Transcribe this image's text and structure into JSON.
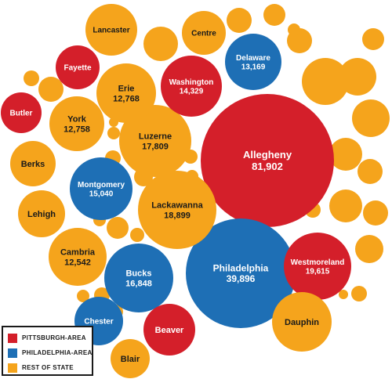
{
  "colors": {
    "pittsburgh": "#d41f2a",
    "philadelphia": "#1e6fb5",
    "rest": "#f5a41c"
  },
  "legend": {
    "pittsburgh": "PITTSBURGH-AREA",
    "philadelphia": "PHILADELPHIA-AREA",
    "rest": "REST OF STATE"
  },
  "chart_data": {
    "type": "bubble",
    "title": "",
    "legend_position": "bottom-left",
    "labeled": [
      {
        "name": "Allegheny",
        "value": 81902,
        "group": "pittsburgh"
      },
      {
        "name": "Philadelphia",
        "value": 39896,
        "group": "philadelphia"
      },
      {
        "name": "Westmoreland",
        "value": 19615,
        "group": "pittsburgh"
      },
      {
        "name": "Lackawanna",
        "value": 18899,
        "group": "rest"
      },
      {
        "name": "Luzerne",
        "value": 17809,
        "group": "rest"
      },
      {
        "name": "Bucks",
        "value": 16848,
        "group": "philadelphia"
      },
      {
        "name": "Montgomery",
        "value": 15040,
        "group": "philadelphia"
      },
      {
        "name": "Washington",
        "value": 14329,
        "group": "pittsburgh"
      },
      {
        "name": "Delaware",
        "value": 13169,
        "group": "philadelphia"
      },
      {
        "name": "Erie",
        "value": 12768,
        "group": "rest"
      },
      {
        "name": "York",
        "value": 12758,
        "group": "rest"
      },
      {
        "name": "Cambria",
        "value": 12542,
        "group": "rest"
      },
      {
        "name": "Lancaster",
        "value": null,
        "group": "rest"
      },
      {
        "name": "Centre",
        "value": null,
        "group": "rest"
      },
      {
        "name": "Fayette",
        "value": null,
        "group": "pittsburgh"
      },
      {
        "name": "Butler",
        "value": null,
        "group": "pittsburgh"
      },
      {
        "name": "Berks",
        "value": null,
        "group": "rest"
      },
      {
        "name": "Lehigh",
        "value": null,
        "group": "rest"
      },
      {
        "name": "Chester",
        "value": null,
        "group": "philadelphia"
      },
      {
        "name": "Beaver",
        "value": null,
        "group": "pittsburgh"
      },
      {
        "name": "Dauphin",
        "value": null,
        "group": "rest"
      },
      {
        "name": "Blair",
        "value": null,
        "group": "rest"
      }
    ],
    "unlabeled_bubbles": 36,
    "unlabeled_group": "rest"
  }
}
